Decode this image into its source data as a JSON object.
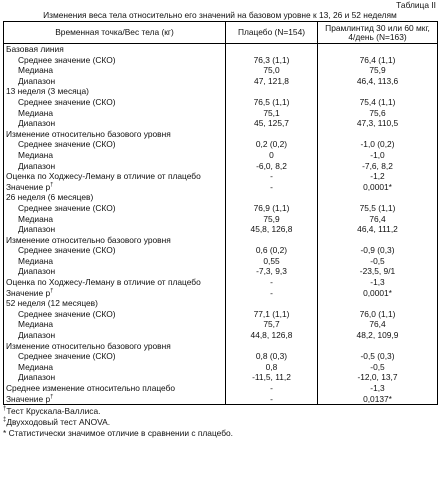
{
  "table_label": "Таблица II",
  "caption": "Изменения веса тела относительно его значений на базовом уровне к 13, 26 и 52 неделям",
  "headers": {
    "col1": "Временная точка/Вес тела (кг)",
    "col2": "Плацебо (N=154)",
    "col3_line1": "Прамлинтид 30 или 60 мкг,",
    "col3_line2": "4/день (N=163)"
  },
  "rows": [
    {
      "label": "Базовая линия",
      "indent": false,
      "p": "",
      "r": ""
    },
    {
      "label": "Среднее значение (СКО)",
      "indent": true,
      "p": "76,3 (1,1)",
      "r": "76,4 (1,1)"
    },
    {
      "label": "Медиана",
      "indent": true,
      "p": "75,0",
      "r": "75,9"
    },
    {
      "label": "Диапазон",
      "indent": true,
      "p": "47, 121,8",
      "r": "46,4, 113,6"
    },
    {
      "label": "13 неделя (3 месяца)",
      "indent": false,
      "p": "",
      "r": ""
    },
    {
      "label": "Среднее значение (СКО)",
      "indent": true,
      "p": "76,5 (1,1)",
      "r": "75,4 (1,1)"
    },
    {
      "label": "Медиана",
      "indent": true,
      "p": "75,1",
      "r": "75,6"
    },
    {
      "label": "Диапазон",
      "indent": true,
      "p": "45, 125,7",
      "r": "47,3, 110,5"
    },
    {
      "label": "Изменение относительно базового уровня",
      "indent": false,
      "p": "",
      "r": ""
    },
    {
      "label": "Среднее значение (СКО)",
      "indent": true,
      "p": "0,2 (0,2)",
      "r": "-1,0 (0,2)"
    },
    {
      "label": "Медиана",
      "indent": true,
      "p": "0",
      "r": "-1,0"
    },
    {
      "label": "Диапазон",
      "indent": true,
      "p": "-6,0, 8,2",
      "r": "-7,6, 8,2"
    },
    {
      "label": "Оценка по Ходжесу-Леману в отличие от плацебо",
      "indent": false,
      "p": "-",
      "r": "-1,2"
    },
    {
      "label": "Значение p",
      "sup": "†",
      "indent": false,
      "p": "-",
      "r": "0,0001*"
    },
    {
      "label": "26 неделя (6 месяцев)",
      "indent": false,
      "p": "",
      "r": ""
    },
    {
      "label": "Среднее значение (СКО)",
      "indent": true,
      "p": "76,9 (1,1)",
      "r": "75,5 (1,1)"
    },
    {
      "label": "Медиана",
      "indent": true,
      "p": "75,9",
      "r": "76,4"
    },
    {
      "label": "Диапазон",
      "indent": true,
      "p": "45,8, 126,8",
      "r": "46,4, 111,2"
    },
    {
      "label": "Изменение относительно базового уровня",
      "indent": false,
      "p": "",
      "r": ""
    },
    {
      "label": "Среднее значение (СКО)",
      "indent": true,
      "p": "0,6 (0,2)",
      "r": "-0,9 (0,3)"
    },
    {
      "label": "Медиана",
      "indent": true,
      "p": "0,55",
      "r": "-0,5"
    },
    {
      "label": "Диапазон",
      "indent": true,
      "p": "-7,3, 9,3",
      "r": "-23,5, 9/1"
    },
    {
      "label": "Оценка по Ходжесу-Леману в отличие от плацебо",
      "indent": false,
      "p": "-",
      "r": "-1,3"
    },
    {
      "label": "Значение p",
      "sup": "†",
      "indent": false,
      "p": "-",
      "r": "0,0001*"
    },
    {
      "label": "52 неделя (12 месяцев)",
      "indent": false,
      "p": "",
      "r": ""
    },
    {
      "label": "Среднее значение (СКО)",
      "indent": true,
      "p": "77,1 (1,1)",
      "r": "76,0 (1,1)"
    },
    {
      "label": "Медиана",
      "indent": true,
      "p": "75,7",
      "r": "76,4"
    },
    {
      "label": "Диапазон",
      "indent": true,
      "p": "44,8, 126,8",
      "r": "48,2, 109,9"
    },
    {
      "label": "Изменение относительно базового уровня",
      "indent": false,
      "p": "",
      "r": ""
    },
    {
      "label": "Среднее значение (СКО)",
      "indent": true,
      "p": "0,8 (0,3)",
      "r": "-0,5 (0,3)"
    },
    {
      "label": "Медиана",
      "indent": true,
      "p": "0,8",
      "r": "-0,5"
    },
    {
      "label": "Диапазон",
      "indent": true,
      "p": "-11,5, 11,2",
      "r": "-12,0, 13,7"
    },
    {
      "label": "Среднее изменение относительно плацебо",
      "indent": false,
      "p": "-",
      "r": "-1,3"
    },
    {
      "label": "Значение p",
      "sup": "†",
      "indent": false,
      "p": "-",
      "r": "0,0137*"
    }
  ],
  "footnotes": [
    {
      "mark": "†",
      "text": "Тест Крускала-Валлиса."
    },
    {
      "mark": "‡",
      "text": "Двухходовый тест ANOVA."
    },
    {
      "mark": "",
      "text": "* Статистически значимое отличие в сравнении с плацебо."
    }
  ]
}
